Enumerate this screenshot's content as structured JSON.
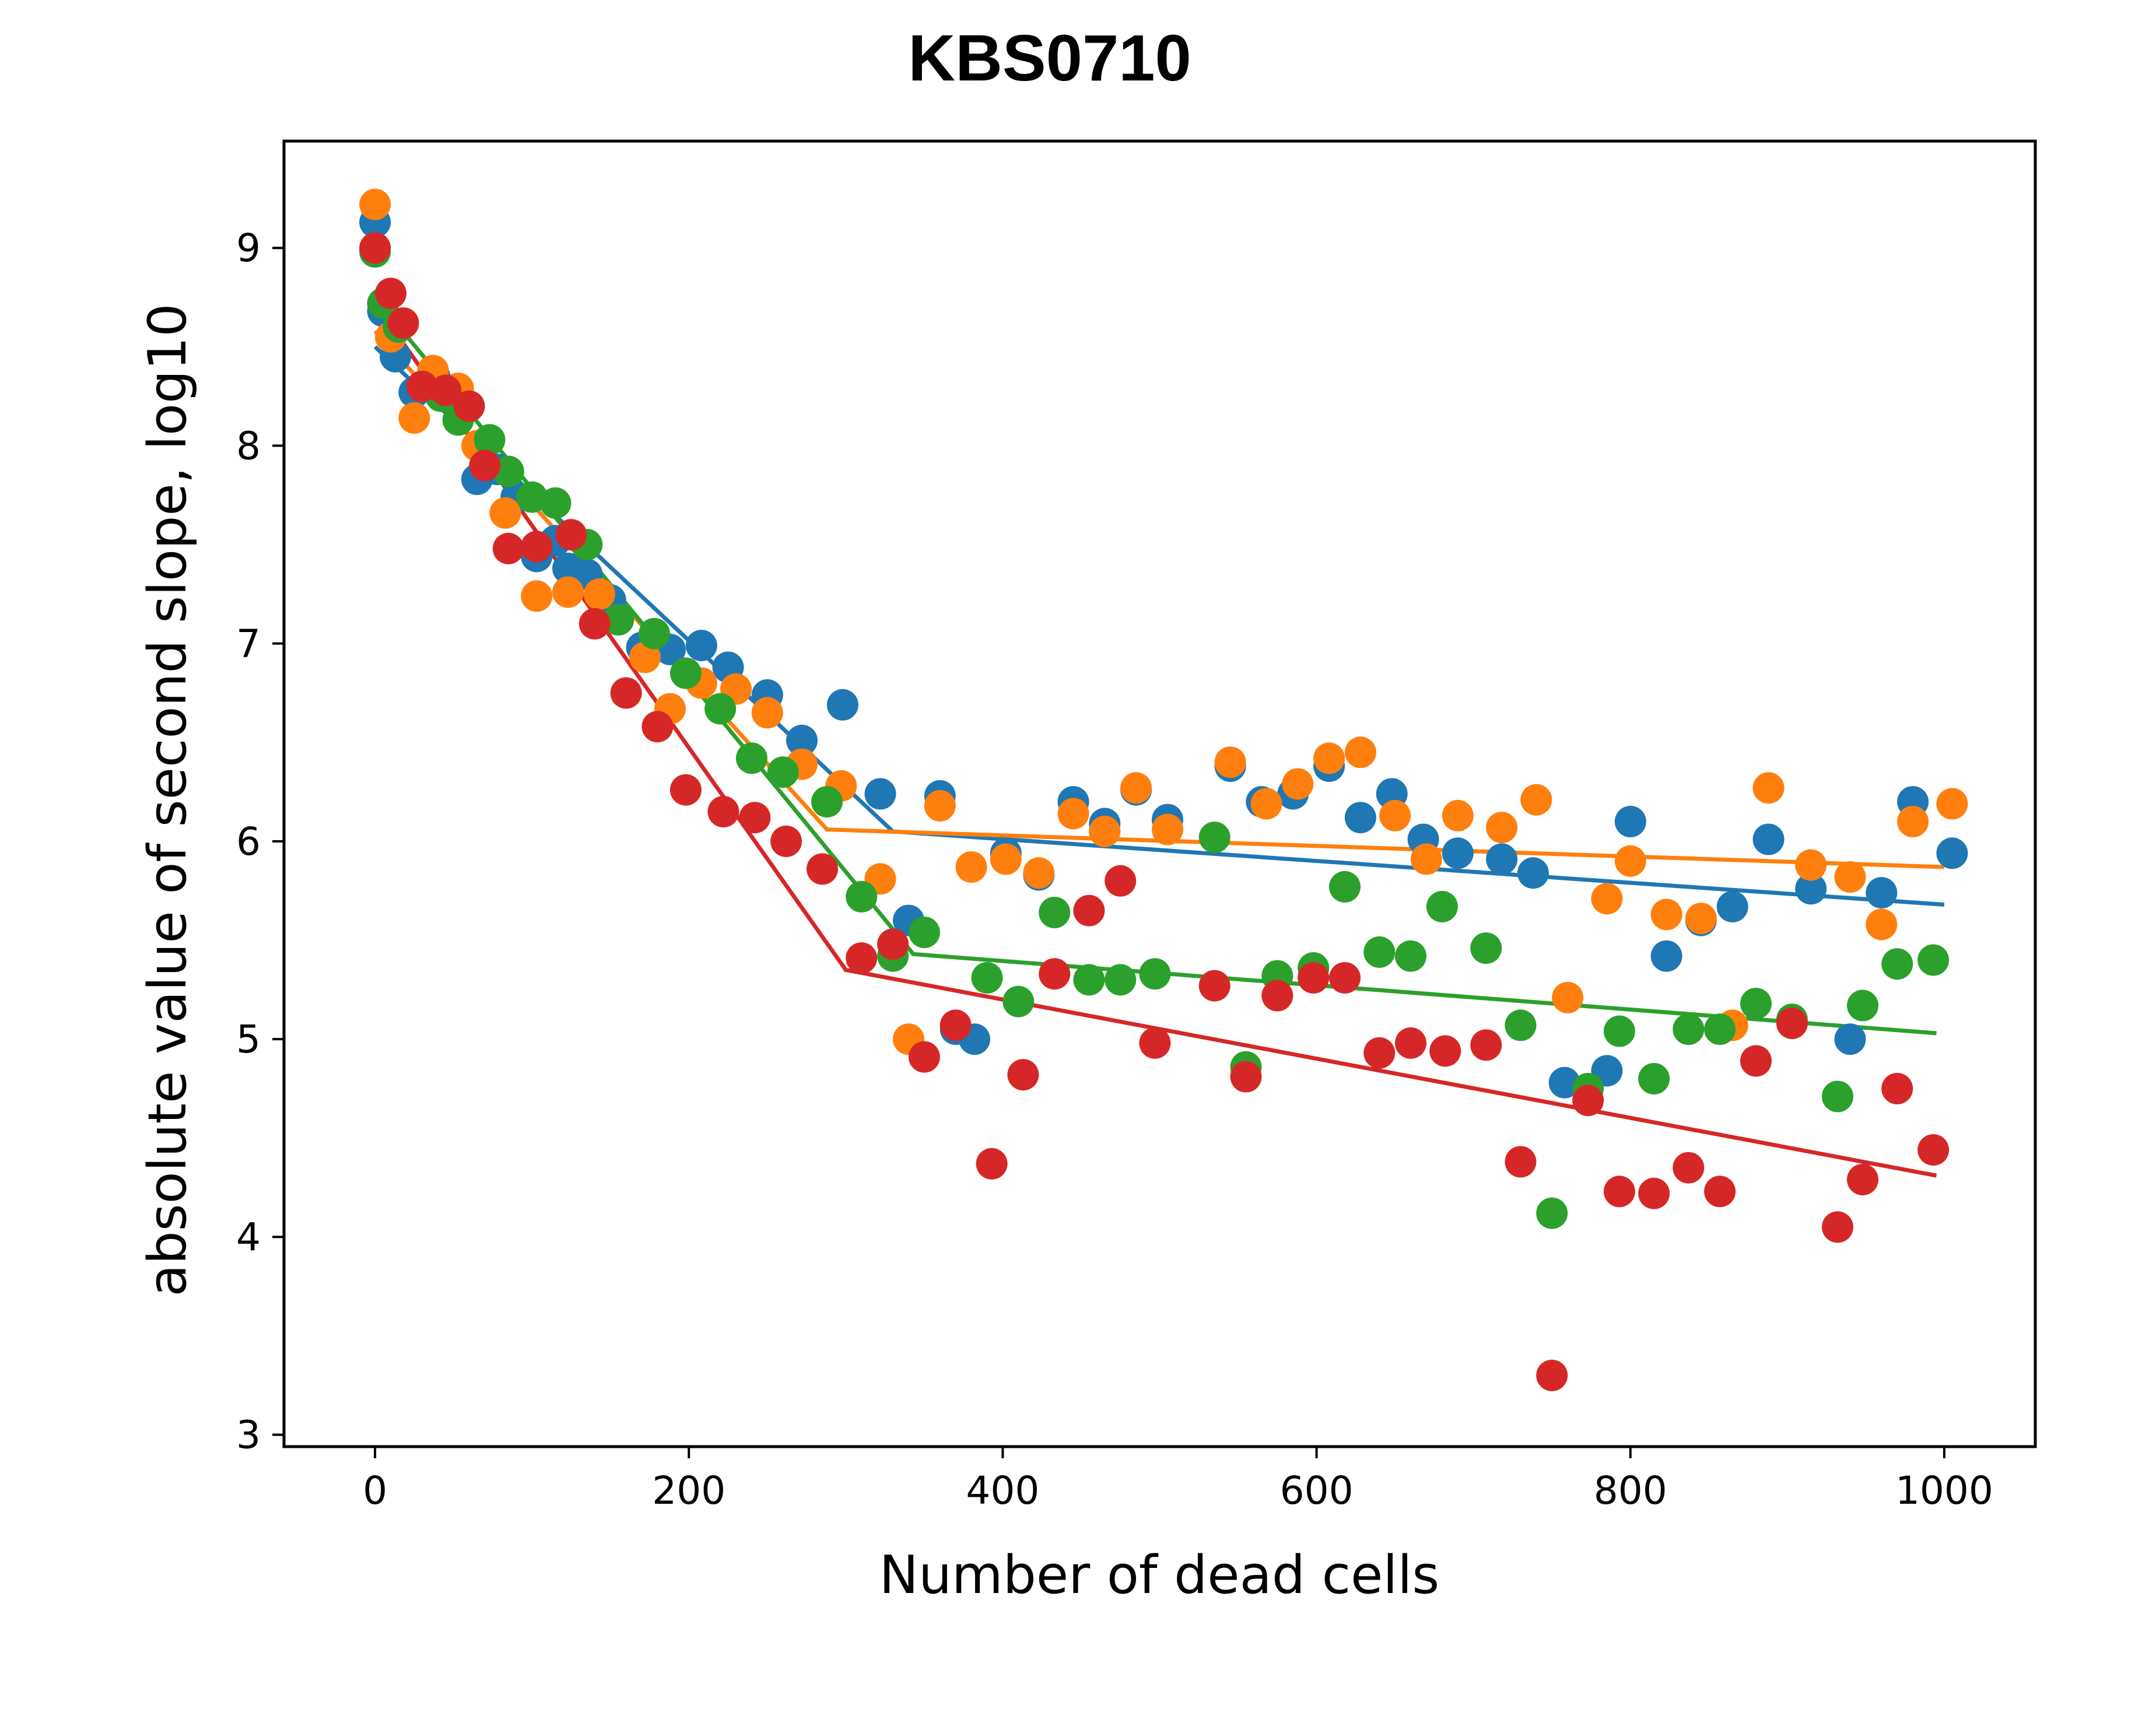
{
  "chart_data": {
    "type": "scatter",
    "title": "KBS0710",
    "xlabel": "Number of dead cells",
    "ylabel": "absolute value of second slope, log10",
    "xlim": [
      -58,
      1058
    ],
    "ylim": [
      2.94,
      9.54
    ],
    "xticks": [
      0,
      200,
      400,
      600,
      800,
      1000
    ],
    "yticks": [
      3,
      4,
      5,
      6,
      7,
      8,
      9
    ],
    "grid": false,
    "legend": "none",
    "series": [
      {
        "color": "#1f77b4",
        "points": [
          [
            0,
            9.13
          ],
          [
            5,
            8.68
          ],
          [
            13,
            8.45
          ],
          [
            25,
            8.27
          ],
          [
            38,
            8.35
          ],
          [
            53,
            8.24
          ],
          [
            65,
            7.83
          ],
          [
            78,
            7.88
          ],
          [
            90,
            7.74
          ],
          [
            103,
            7.44
          ],
          [
            115,
            7.52
          ],
          [
            123,
            7.38
          ],
          [
            135,
            7.35
          ],
          [
            150,
            7.22
          ],
          [
            170,
            6.98
          ],
          [
            188,
            6.97
          ],
          [
            208,
            6.99
          ],
          [
            225,
            6.88
          ],
          [
            250,
            6.74
          ],
          [
            272,
            6.51
          ],
          [
            298,
            6.69
          ],
          [
            322,
            6.24
          ],
          [
            340,
            5.6
          ],
          [
            360,
            6.23
          ],
          [
            370,
            5.05
          ],
          [
            382,
            5.0
          ],
          [
            402,
            5.94
          ],
          [
            423,
            5.83
          ],
          [
            445,
            6.2
          ],
          [
            465,
            6.09
          ],
          [
            485,
            6.26
          ],
          [
            505,
            6.11
          ],
          [
            545,
            6.38
          ],
          [
            565,
            6.2
          ],
          [
            585,
            6.24
          ],
          [
            608,
            6.38
          ],
          [
            628,
            6.12
          ],
          [
            648,
            6.24
          ],
          [
            668,
            6.01
          ],
          [
            690,
            5.94
          ],
          [
            718,
            5.91
          ],
          [
            738,
            5.84
          ],
          [
            758,
            4.78
          ],
          [
            785,
            4.84
          ],
          [
            800,
            6.1
          ],
          [
            823,
            5.42
          ],
          [
            845,
            5.6
          ],
          [
            865,
            5.67
          ],
          [
            888,
            6.01
          ],
          [
            915,
            5.76
          ],
          [
            940,
            5.0
          ],
          [
            960,
            5.74
          ],
          [
            980,
            6.2
          ],
          [
            1005,
            5.94
          ]
        ],
        "fit": [
          [
            0,
            8.5
          ],
          [
            330,
            6.05
          ],
          [
            1000,
            5.68
          ]
        ]
      },
      {
        "color": "#ff7f0e",
        "points": [
          [
            0,
            9.22
          ],
          [
            10,
            8.55
          ],
          [
            25,
            8.14
          ],
          [
            37,
            8.38
          ],
          [
            53,
            8.29
          ],
          [
            65,
            8.0
          ],
          [
            83,
            7.66
          ],
          [
            103,
            7.24
          ],
          [
            123,
            7.26
          ],
          [
            143,
            7.25
          ],
          [
            172,
            6.93
          ],
          [
            188,
            6.67
          ],
          [
            208,
            6.8
          ],
          [
            230,
            6.77
          ],
          [
            250,
            6.65
          ],
          [
            272,
            6.39
          ],
          [
            297,
            6.28
          ],
          [
            322,
            5.81
          ],
          [
            340,
            5.0
          ],
          [
            360,
            6.18
          ],
          [
            380,
            5.87
          ],
          [
            402,
            5.91
          ],
          [
            423,
            5.84
          ],
          [
            445,
            6.14
          ],
          [
            465,
            6.05
          ],
          [
            485,
            6.27
          ],
          [
            505,
            6.06
          ],
          [
            545,
            6.4
          ],
          [
            568,
            6.19
          ],
          [
            588,
            6.29
          ],
          [
            608,
            6.42
          ],
          [
            628,
            6.45
          ],
          [
            650,
            6.13
          ],
          [
            670,
            5.91
          ],
          [
            690,
            6.13
          ],
          [
            718,
            6.07
          ],
          [
            740,
            6.21
          ],
          [
            760,
            5.21
          ],
          [
            785,
            5.71
          ],
          [
            800,
            5.9
          ],
          [
            823,
            5.63
          ],
          [
            845,
            5.61
          ],
          [
            865,
            5.07
          ],
          [
            888,
            6.27
          ],
          [
            915,
            5.88
          ],
          [
            940,
            5.82
          ],
          [
            960,
            5.58
          ],
          [
            980,
            6.1
          ],
          [
            1005,
            6.19
          ]
        ],
        "fit": [
          [
            0,
            8.58
          ],
          [
            288,
            6.06
          ],
          [
            1000,
            5.87
          ]
        ]
      },
      {
        "color": "#2ca02c",
        "points": [
          [
            0,
            8.98
          ],
          [
            5,
            8.72
          ],
          [
            15,
            8.6
          ],
          [
            30,
            8.3
          ],
          [
            42,
            8.25
          ],
          [
            53,
            8.13
          ],
          [
            73,
            8.03
          ],
          [
            85,
            7.87
          ],
          [
            100,
            7.74
          ],
          [
            115,
            7.71
          ],
          [
            135,
            7.5
          ],
          [
            155,
            7.12
          ],
          [
            178,
            7.05
          ],
          [
            198,
            6.85
          ],
          [
            220,
            6.67
          ],
          [
            240,
            6.42
          ],
          [
            260,
            6.35
          ],
          [
            288,
            6.2
          ],
          [
            310,
            5.72
          ],
          [
            330,
            5.42
          ],
          [
            350,
            5.54
          ],
          [
            390,
            5.31
          ],
          [
            410,
            5.19
          ],
          [
            433,
            5.64
          ],
          [
            455,
            5.3
          ],
          [
            475,
            5.3
          ],
          [
            497,
            5.33
          ],
          [
            535,
            6.02
          ],
          [
            555,
            4.86
          ],
          [
            575,
            5.32
          ],
          [
            598,
            5.36
          ],
          [
            618,
            5.77
          ],
          [
            640,
            5.44
          ],
          [
            660,
            5.42
          ],
          [
            680,
            5.67
          ],
          [
            708,
            5.46
          ],
          [
            730,
            5.07
          ],
          [
            750,
            4.12
          ],
          [
            773,
            4.75
          ],
          [
            793,
            5.04
          ],
          [
            815,
            4.8
          ],
          [
            837,
            5.05
          ],
          [
            857,
            5.05
          ],
          [
            880,
            5.18
          ],
          [
            903,
            5.1
          ],
          [
            932,
            4.71
          ],
          [
            948,
            5.17
          ],
          [
            970,
            5.38
          ],
          [
            993,
            5.4
          ]
        ],
        "fit": [
          [
            0,
            8.75
          ],
          [
            343,
            5.43
          ],
          [
            995,
            5.03
          ]
        ]
      },
      {
        "color": "#d62728",
        "points": [
          [
            0,
            9.0
          ],
          [
            10,
            8.77
          ],
          [
            18,
            8.62
          ],
          [
            30,
            8.3
          ],
          [
            45,
            8.28
          ],
          [
            60,
            8.2
          ],
          [
            70,
            7.9
          ],
          [
            85,
            7.48
          ],
          [
            103,
            7.49
          ],
          [
            125,
            7.55
          ],
          [
            140,
            7.1
          ],
          [
            160,
            6.75
          ],
          [
            180,
            6.58
          ],
          [
            198,
            6.26
          ],
          [
            222,
            6.15
          ],
          [
            242,
            6.12
          ],
          [
            262,
            6.0
          ],
          [
            285,
            5.86
          ],
          [
            310,
            5.41
          ],
          [
            330,
            5.48
          ],
          [
            350,
            4.91
          ],
          [
            370,
            5.07
          ],
          [
            393,
            4.37
          ],
          [
            413,
            4.82
          ],
          [
            433,
            5.33
          ],
          [
            455,
            5.65
          ],
          [
            475,
            5.8
          ],
          [
            497,
            4.98
          ],
          [
            535,
            5.27
          ],
          [
            555,
            4.81
          ],
          [
            575,
            5.22
          ],
          [
            598,
            5.31
          ],
          [
            618,
            5.31
          ],
          [
            640,
            4.93
          ],
          [
            660,
            4.98
          ],
          [
            682,
            4.94
          ],
          [
            708,
            4.97
          ],
          [
            730,
            4.38
          ],
          [
            750,
            3.3
          ],
          [
            773,
            4.69
          ],
          [
            793,
            4.23
          ],
          [
            815,
            4.22
          ],
          [
            837,
            4.35
          ],
          [
            857,
            4.23
          ],
          [
            880,
            4.89
          ],
          [
            903,
            5.08
          ],
          [
            932,
            4.05
          ],
          [
            948,
            4.29
          ],
          [
            970,
            4.75
          ],
          [
            993,
            4.44
          ]
        ],
        "fit": [
          [
            0,
            8.72
          ],
          [
            300,
            5.35
          ],
          [
            995,
            4.31
          ]
        ]
      }
    ]
  }
}
